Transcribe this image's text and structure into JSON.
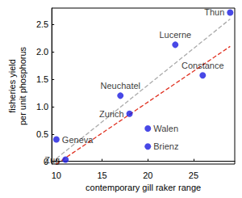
{
  "chart_data": {
    "type": "scatter",
    "xlabel": "contemporary gill raker range",
    "ylabel": "fisheries yield\nper unit phosphorus",
    "xlim": [
      9.5,
      29.5
    ],
    "xticks": [
      10,
      15,
      20,
      25
    ],
    "ylim": [
      -0.05,
      2.8
    ],
    "yticks": [
      0,
      0.5,
      {
        "value": 1,
        "label": "1.0"
      },
      1.5,
      {
        "value": 2,
        "label": "2.0"
      },
      2.5
    ],
    "grid": false,
    "series": [
      {
        "type": "line",
        "color": "#aaaaaa",
        "line_style": "dashed",
        "x": [
          10,
          29
        ],
        "values": [
          0.05,
          2.6
        ]
      },
      {
        "type": "line",
        "color": "#e03020",
        "line_style": "dashed",
        "x": [
          10,
          29
        ],
        "values": [
          -0.05,
          2.1
        ]
      },
      {
        "type": "scatter",
        "color": "#1a1ae0",
        "marker": "circle",
        "x": [
          29,
          23,
          26,
          17,
          18,
          20,
          20,
          10,
          11
        ],
        "values": [
          2.72,
          2.13,
          1.57,
          1.2,
          0.87,
          0.6,
          0.27,
          0.4,
          0.03
        ],
        "labels": [
          "Thun",
          "Lucerne",
          "Constance",
          "Neuchatel",
          "Zurich",
          "Walen",
          "Brienz",
          "Geneva",
          "Zug"
        ]
      }
    ]
  }
}
